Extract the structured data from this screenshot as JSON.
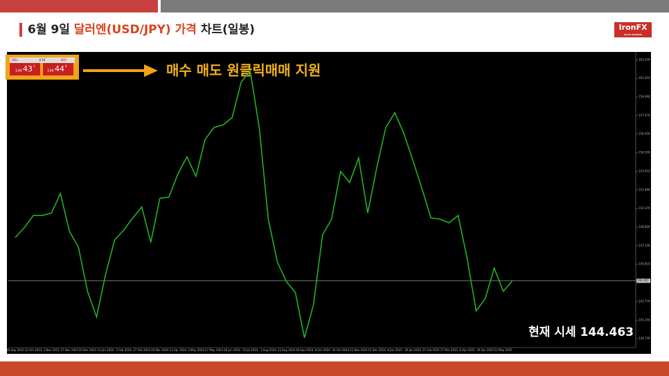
{
  "header": {
    "title_start": "6월 9일 ",
    "title_highlight": "달러엔(USD/JPY) 가격",
    "title_end": " 차트(일봉)"
  },
  "logo": {
    "name": "IronFX",
    "tagline": "SOLID TRADING"
  },
  "widget": {
    "sell": "SELL",
    "lot": "0.10",
    "buy": "BUY",
    "sell_big": "144",
    "sell_main": "43",
    "sell_sup": "1",
    "buy_big": "144",
    "buy_main": "44",
    "buy_sup": "4"
  },
  "callout": "매수 매도 원클릭매매 지원",
  "chart_data": {
    "type": "line",
    "color": "#22b322",
    "annotation": "현재 시세 144.463",
    "current_price": 144.463,
    "categories": [
      "20 Sep 2023",
      null,
      "12 Oct 2023",
      null,
      "3 Nov 2023",
      null,
      "27 Nov 2023",
      null,
      "19 Dec 2023",
      null,
      "12 Jan 2024",
      null,
      "5 Feb 2024",
      null,
      "27 Feb 2024",
      null,
      "20 Mar 2024",
      null,
      "11 Apr 2024",
      null,
      "3 May 2024",
      null,
      "27 May 2024",
      null,
      "18 Jun 2024",
      null,
      "10 Jul 2024",
      null,
      "1 Aug 2024",
      null,
      "23 Aug 2024",
      null,
      "16 Sep 2024",
      null,
      "8 Oct 2024",
      null,
      "30 Oct 2024",
      null,
      "21 Nov 2024",
      null,
      "13 Dec 2024",
      null,
      "8 Jan 2025",
      null,
      "30 Jan 2025",
      null,
      "21 Feb 2025",
      null,
      "17 Mar 2025",
      null,
      "8 Apr 2025",
      null,
      "30 Apr 2025",
      null,
      "22 May 2025",
      null
    ],
    "values": [
      148.0,
      148.8,
      149.8,
      149.8,
      150.0,
      151.6,
      148.5,
      147.2,
      143.6,
      141.5,
      145.0,
      147.8,
      148.6,
      149.6,
      150.5,
      147.6,
      151.2,
      151.3,
      153.2,
      154.6,
      153.0,
      156.0,
      157.0,
      157.2,
      157.8,
      160.7,
      161.6,
      157.0,
      149.5,
      146.0,
      144.4,
      143.5,
      139.8,
      142.5,
      148.2,
      149.5,
      153.4,
      152.5,
      154.5,
      150.0,
      153.7,
      157.0,
      158.2,
      156.5,
      154.3,
      152.0,
      149.6,
      149.5,
      149.2,
      149.8,
      146.3,
      142.0,
      143.0,
      145.5,
      143.6,
      144.463
    ],
    "ylim": [
      139.0,
      163.0
    ],
    "yticks": [
      {
        "value": 162.53,
        "label": "162.530"
      },
      {
        "value": 161.01,
        "label": "161.010"
      },
      {
        "value": 159.49,
        "label": "159.490"
      },
      {
        "value": 157.97,
        "label": "157.970"
      },
      {
        "value": 156.45,
        "label": "156.450"
      },
      {
        "value": 154.93,
        "label": "154.930"
      },
      {
        "value": 153.41,
        "label": "153.410"
      },
      {
        "value": 151.89,
        "label": "151.890"
      },
      {
        "value": 150.37,
        "label": "150.370"
      },
      {
        "value": 148.85,
        "label": "148.850"
      },
      {
        "value": 147.33,
        "label": "147.330"
      },
      {
        "value": 145.81,
        "label": "145.810"
      },
      {
        "value": 142.77,
        "label": "142.770"
      },
      {
        "value": 141.25,
        "label": "141.250"
      },
      {
        "value": 139.73,
        "label": "139.730"
      }
    ]
  }
}
